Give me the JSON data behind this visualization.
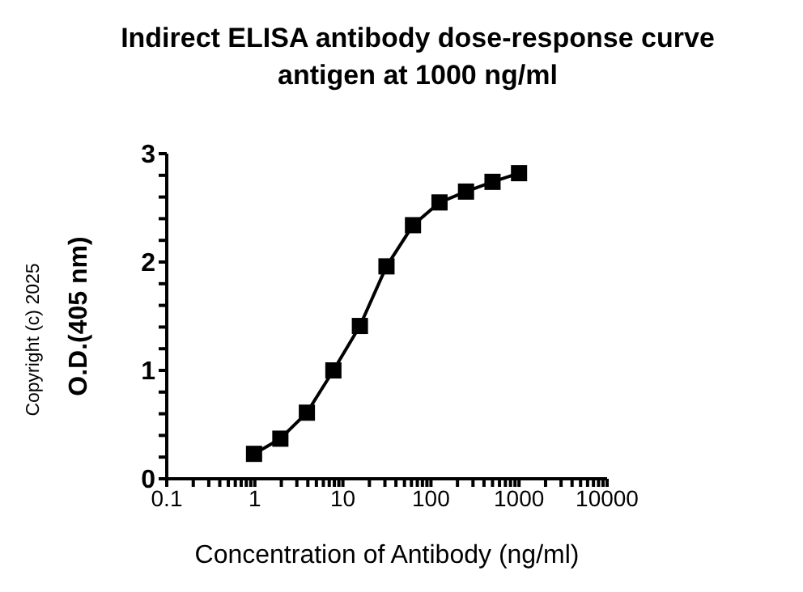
{
  "chart_data": {
    "type": "line",
    "title": "Indirect ELISA antibody dose-response curve",
    "subtitle": "antigen at 1000 ng/ml",
    "xlabel": "Concentration of Antibody (ng/ml)",
    "ylabel": "O.D.(405 nm)",
    "annotations": [
      "Copyright (c) 2025"
    ],
    "log": "x",
    "xlim": [
      0.1,
      10000
    ],
    "xticks": [
      0.1,
      {
        "value": 0.2,
        "label": null
      },
      {
        "value": 0.3,
        "label": null
      },
      {
        "value": 0.4,
        "label": null
      },
      {
        "value": 0.5,
        "label": null
      },
      {
        "value": 0.6,
        "label": null
      },
      {
        "value": 0.7,
        "label": null
      },
      {
        "value": 0.8,
        "label": null
      },
      {
        "value": 0.9,
        "label": null
      },
      1,
      {
        "value": 2,
        "label": null
      },
      {
        "value": 3,
        "label": null
      },
      {
        "value": 4,
        "label": null
      },
      {
        "value": 5,
        "label": null
      },
      {
        "value": 6,
        "label": null
      },
      {
        "value": 7,
        "label": null
      },
      {
        "value": 8,
        "label": null
      },
      {
        "value": 9,
        "label": null
      },
      10,
      {
        "value": 20,
        "label": null
      },
      {
        "value": 30,
        "label": null
      },
      {
        "value": 40,
        "label": null
      },
      {
        "value": 50,
        "label": null
      },
      {
        "value": 60,
        "label": null
      },
      {
        "value": 70,
        "label": null
      },
      {
        "value": 80,
        "label": null
      },
      {
        "value": 90,
        "label": null
      },
      100,
      {
        "value": 200,
        "label": null
      },
      {
        "value": 300,
        "label": null
      },
      {
        "value": 400,
        "label": null
      },
      {
        "value": 500,
        "label": null
      },
      {
        "value": 600,
        "label": null
      },
      {
        "value": 700,
        "label": null
      },
      {
        "value": 800,
        "label": null
      },
      {
        "value": 900,
        "label": null
      },
      1000,
      {
        "value": 2000,
        "label": null
      },
      {
        "value": 3000,
        "label": null
      },
      {
        "value": 4000,
        "label": null
      },
      {
        "value": 5000,
        "label": null
      },
      {
        "value": 6000,
        "label": null
      },
      {
        "value": 7000,
        "label": null
      },
      {
        "value": 8000,
        "label": null
      },
      {
        "value": 9000,
        "label": null
      },
      10000
    ],
    "ylim": [
      0,
      3
    ],
    "yticks": [
      0,
      {
        "value": 0.2,
        "label": null
      },
      {
        "value": 0.4,
        "label": null
      },
      {
        "value": 0.6,
        "label": null
      },
      {
        "value": 0.8,
        "label": null
      },
      1,
      {
        "value": 1.2,
        "label": null
      },
      {
        "value": 1.4,
        "label": null
      },
      {
        "value": 1.6,
        "label": null
      },
      {
        "value": 1.8,
        "label": null
      },
      2,
      {
        "value": 2.2,
        "label": null
      },
      {
        "value": 2.4,
        "label": null
      },
      {
        "value": 2.6,
        "label": null
      },
      {
        "value": 2.8,
        "label": null
      },
      3
    ],
    "grid": false,
    "legend": false,
    "marker": "square",
    "line_style": "solid",
    "x": [
      0.98,
      1.95,
      3.9,
      7.8,
      15.6,
      31.25,
      62.5,
      125,
      250,
      500,
      1000
    ],
    "series": [
      {
        "color": "#000000",
        "values": [
          0.23,
          0.37,
          0.61,
          1.0,
          1.41,
          1.96,
          2.34,
          2.55,
          2.65,
          2.74,
          2.82
        ]
      }
    ]
  }
}
